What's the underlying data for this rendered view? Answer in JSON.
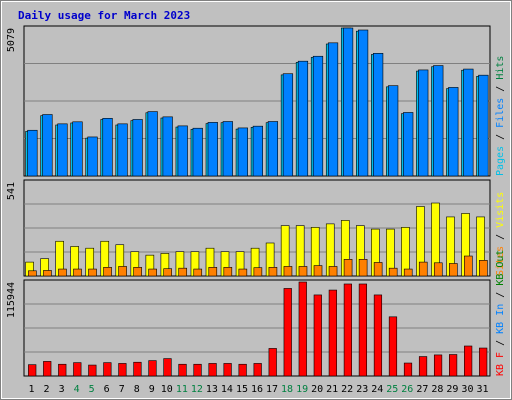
{
  "colors": {
    "pages": "#00c0e8",
    "files": "#0080ff",
    "hits": "#008040",
    "visits": "#ffff00",
    "sites": "#ff8000",
    "kbf": "#ff0000",
    "kbin": "#0080ff",
    "kbout": "#008000",
    "weekend": "#008040",
    "weekday": "#000000",
    "separator": "#000000"
  },
  "chart_data": [
    {
      "type": "bar",
      "title": "Daily usage for March 2023",
      "ymax_label": "5079",
      "ylim": [
        0,
        5079
      ],
      "x": [
        1,
        2,
        3,
        4,
        5,
        6,
        7,
        8,
        9,
        10,
        11,
        12,
        13,
        14,
        15,
        16,
        17,
        18,
        19,
        20,
        21,
        22,
        23,
        24,
        25,
        26,
        27,
        28,
        29,
        30,
        31
      ],
      "weekend_days": [
        4,
        5,
        11,
        12,
        18,
        19,
        25,
        26
      ],
      "right_labels": [
        {
          "text": "Pages",
          "color": "#00c0e8"
        },
        {
          "text": " / ",
          "color": "#000000"
        },
        {
          "text": "Files",
          "color": "#0080ff"
        },
        {
          "text": " / ",
          "color": "#000000"
        },
        {
          "text": "Hits",
          "color": "#008040"
        }
      ],
      "series": [
        {
          "values": [
            1530,
            2070,
            1750,
            1820,
            1300,
            1940,
            1750,
            1900,
            2170,
            1990,
            1680,
            1600,
            1800,
            1830,
            1610,
            1670,
            1830,
            3470,
            3900,
            4070,
            4530,
            5079,
            4970,
            4170,
            3060,
            2140,
            3600,
            3750,
            3000,
            3630,
            3420
          ]
        },
        {
          "values": [
            1570,
            2110,
            1790,
            1860,
            1340,
            1980,
            1790,
            1940,
            2210,
            2030,
            1720,
            1640,
            1840,
            1870,
            1650,
            1710,
            1870,
            3510,
            3940,
            4110,
            4570,
            5079,
            5010,
            4210,
            3100,
            2180,
            3640,
            3790,
            3040,
            3670,
            3460
          ]
        }
      ]
    },
    {
      "type": "bar",
      "ymax_label": "541",
      "ylim": [
        0,
        541
      ],
      "x": [
        1,
        2,
        3,
        4,
        5,
        6,
        7,
        8,
        9,
        10,
        11,
        12,
        13,
        14,
        15,
        16,
        17,
        18,
        19,
        20,
        21,
        22,
        23,
        24,
        25,
        26,
        27,
        28,
        29,
        30,
        31
      ],
      "right_labels": [
        {
          "text": "Sites",
          "color": "#ff8000"
        },
        {
          "text": " / ",
          "color": "#000000"
        },
        {
          "text": "Visits",
          "color": "#ffff00"
        }
      ],
      "series": [
        {
          "values": [
            80,
            100,
            200,
            170,
            160,
            200,
            180,
            140,
            120,
            130,
            140,
            140,
            160,
            140,
            140,
            160,
            190,
            290,
            290,
            280,
            300,
            320,
            290,
            270,
            270,
            280,
            400,
            420,
            340,
            360,
            340
          ]
        },
        {
          "values": [
            30,
            32,
            40,
            40,
            40,
            50,
            55,
            50,
            40,
            42,
            45,
            40,
            50,
            50,
            40,
            48,
            50,
            55,
            55,
            60,
            55,
            96,
            96,
            78,
            45,
            40,
            80,
            76,
            72,
            115,
            90
          ]
        }
      ]
    },
    {
      "type": "bar",
      "ymax_label": "115944",
      "ylim": [
        0,
        115944
      ],
      "x": [
        1,
        2,
        3,
        4,
        5,
        6,
        7,
        8,
        9,
        10,
        11,
        12,
        13,
        14,
        15,
        16,
        17,
        18,
        19,
        20,
        21,
        22,
        23,
        24,
        25,
        26,
        27,
        28,
        29,
        30,
        31
      ],
      "right_labels": [
        {
          "text": "KB F",
          "color": "#ff0000"
        },
        {
          "text": " / ",
          "color": "#000000"
        },
        {
          "text": "KB In",
          "color": "#0080ff"
        },
        {
          "text": " / ",
          "color": "#000000"
        },
        {
          "text": "KB Out",
          "color": "#008000"
        }
      ],
      "series": [
        {
          "values": [
            14000,
            18000,
            14500,
            16500,
            13500,
            16500,
            15500,
            17000,
            19000,
            21500,
            14500,
            14500,
            15500,
            15500,
            14500,
            15500,
            34000,
            108000,
            115944,
            100000,
            106000,
            113500,
            113500,
            100000,
            73000,
            16000,
            24000,
            26000,
            26500,
            37000,
            34500
          ]
        }
      ]
    }
  ]
}
